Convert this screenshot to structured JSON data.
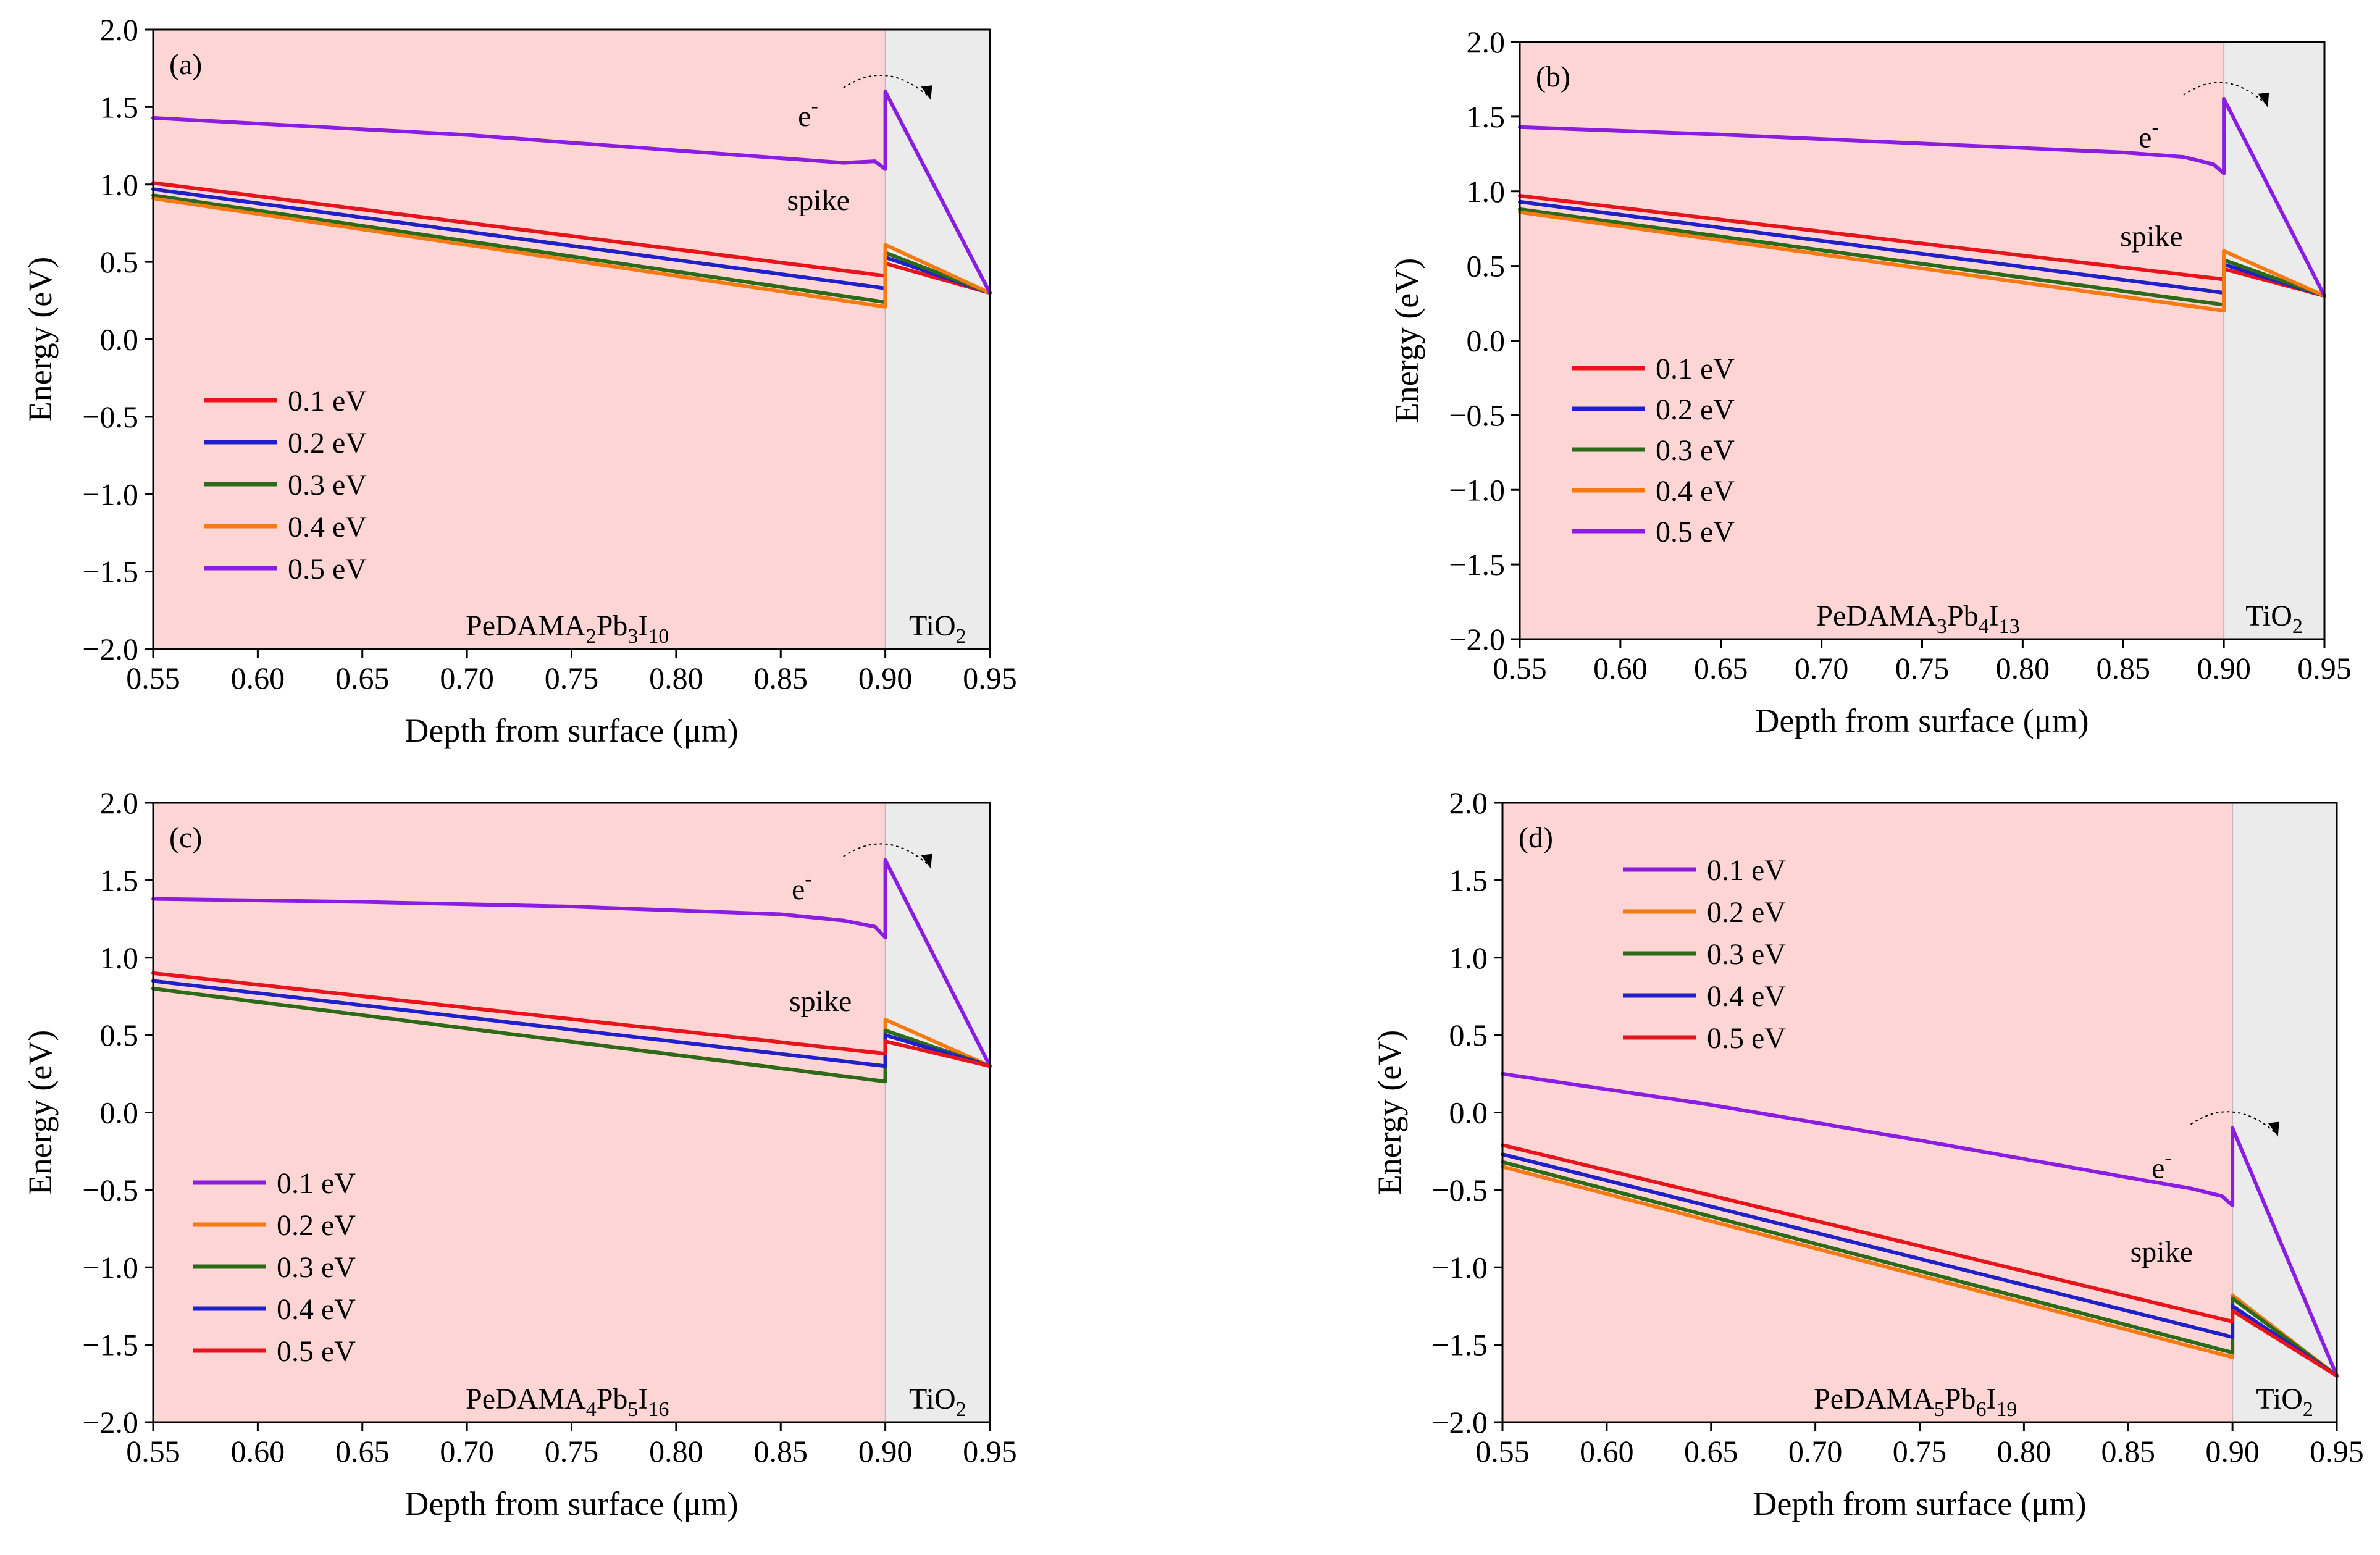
{
  "chart_data": [
    {
      "type": "line",
      "panel_label": "(a)",
      "xlabel": "Depth from surface (μm)",
      "ylabel": "Energy (eV)",
      "xlim": [
        0.55,
        0.95
      ],
      "ylim": [
        -2.0,
        2.0
      ],
      "xticks": [
        "0.55",
        "0.60",
        "0.65",
        "0.70",
        "0.75",
        "0.80",
        "0.85",
        "0.90",
        "0.95"
      ],
      "yticks": [
        "2.0",
        "1.5",
        "1.0",
        "0.5",
        "0.0",
        "−0.5",
        "−1.0",
        "−1.5",
        "−2.0"
      ],
      "regions": [
        {
          "name": "perovskite",
          "x": [
            0.55,
            0.9
          ],
          "color": "#fdd5d5",
          "label_base": "PeDAMA",
          "label_parts": [
            [
              "PeDAMA",
              ""
            ],
            [
              "2",
              "sub"
            ],
            [
              "Pb",
              ""
            ],
            [
              "3",
              "sub"
            ],
            [
              "I",
              ""
            ],
            [
              "10",
              "sub"
            ]
          ]
        },
        {
          "name": "TiO2",
          "x": [
            0.9,
            0.95
          ],
          "color": "#ebebeb",
          "label_parts": [
            [
              "TiO",
              ""
            ],
            [
              "2",
              "sub"
            ]
          ]
        }
      ],
      "annotations": {
        "electron": "e",
        "electron_sup": "-",
        "spike": "spike",
        "electron_xy": [
          0.873,
          1.45
        ],
        "spike_xy": [
          0.868,
          0.9
        ]
      },
      "legend": {
        "position": "lower-left",
        "entries": [
          "0.1 eV",
          "0.2 eV",
          "0.3 eV",
          "0.4 eV",
          "0.5 eV"
        ],
        "colors": [
          "#e8141b",
          "#2020c8",
          "#2a6a18",
          "#f57a14",
          "#8b1de0"
        ]
      },
      "series": [
        {
          "name": "0.1 eV",
          "color": "#e8141b",
          "x": [
            0.55,
            0.9,
            0.9,
            0.95
          ],
          "y": [
            1.01,
            0.41,
            0.49,
            0.3
          ]
        },
        {
          "name": "0.2 eV",
          "color": "#2020c8",
          "x": [
            0.55,
            0.9,
            0.9,
            0.95
          ],
          "y": [
            0.97,
            0.33,
            0.53,
            0.3
          ]
        },
        {
          "name": "0.3 eV",
          "color": "#2a6a18",
          "x": [
            0.55,
            0.9,
            0.9,
            0.95
          ],
          "y": [
            0.93,
            0.24,
            0.56,
            0.3
          ]
        },
        {
          "name": "0.4 eV",
          "color": "#f57a14",
          "x": [
            0.55,
            0.9,
            0.9,
            0.95
          ],
          "y": [
            0.91,
            0.21,
            0.61,
            0.3
          ]
        },
        {
          "name": "0.5 eV",
          "color": "#8b1de0",
          "x": [
            0.55,
            0.7,
            0.8,
            0.85,
            0.88,
            0.895,
            0.9,
            0.9,
            0.95
          ],
          "y": [
            1.43,
            1.32,
            1.22,
            1.17,
            1.14,
            1.15,
            1.1,
            1.6,
            0.3
          ]
        }
      ]
    },
    {
      "type": "line",
      "panel_label": "(b)",
      "xlabel": "Depth from surface (μm)",
      "ylabel": "Energy (eV)",
      "xlim": [
        0.55,
        0.95
      ],
      "ylim": [
        -2.0,
        2.0
      ],
      "xticks": [
        "0.55",
        "0.60",
        "0.65",
        "0.70",
        "0.75",
        "0.80",
        "0.85",
        "0.90",
        "0.95"
      ],
      "yticks": [
        "2.0",
        "1.5",
        "1.0",
        "0.5",
        "0.0",
        "−0.5",
        "−1.0",
        "−1.5",
        "−2.0"
      ],
      "regions": [
        {
          "name": "perovskite",
          "x": [
            0.55,
            0.9
          ],
          "color": "#fdd5d5",
          "label_parts": [
            [
              "PeDAMA",
              ""
            ],
            [
              "3",
              "sub"
            ],
            [
              "Pb",
              ""
            ],
            [
              "4",
              "sub"
            ],
            [
              "I",
              ""
            ],
            [
              "13",
              "sub"
            ]
          ]
        },
        {
          "name": "TiO2",
          "x": [
            0.9,
            0.95
          ],
          "color": "#ebebeb",
          "label_parts": [
            [
              "TiO",
              ""
            ],
            [
              "2",
              "sub"
            ]
          ]
        }
      ],
      "annotations": {
        "electron": "e",
        "electron_sup": "-",
        "spike": "spike",
        "electron_xy": [
          0.873,
          1.37
        ],
        "spike_xy": [
          0.864,
          0.7
        ]
      },
      "legend": {
        "position": "center-left",
        "entries": [
          "0.1 eV",
          "0.2 eV",
          "0.3 eV",
          "0.4 eV",
          "0.5 eV"
        ],
        "colors": [
          "#e8141b",
          "#2020c8",
          "#2a6a18",
          "#f57a14",
          "#8b1de0"
        ]
      },
      "series": [
        {
          "name": "0.1 eV",
          "color": "#e8141b",
          "x": [
            0.55,
            0.9,
            0.9,
            0.95
          ],
          "y": [
            0.97,
            0.41,
            0.48,
            0.3
          ]
        },
        {
          "name": "0.2 eV",
          "color": "#2020c8",
          "x": [
            0.55,
            0.9,
            0.9,
            0.95
          ],
          "y": [
            0.93,
            0.32,
            0.51,
            0.3
          ]
        },
        {
          "name": "0.3 eV",
          "color": "#2a6a18",
          "x": [
            0.55,
            0.9,
            0.9,
            0.95
          ],
          "y": [
            0.88,
            0.24,
            0.54,
            0.3
          ]
        },
        {
          "name": "0.4 eV",
          "color": "#f57a14",
          "x": [
            0.55,
            0.9,
            0.9,
            0.95
          ],
          "y": [
            0.86,
            0.2,
            0.6,
            0.3
          ]
        },
        {
          "name": "0.5 eV",
          "color": "#8b1de0",
          "x": [
            0.55,
            0.65,
            0.75,
            0.85,
            0.88,
            0.895,
            0.9,
            0.9,
            0.95
          ],
          "y": [
            1.43,
            1.38,
            1.32,
            1.26,
            1.23,
            1.18,
            1.12,
            1.62,
            0.3
          ]
        }
      ]
    },
    {
      "type": "line",
      "panel_label": "(c)",
      "xlabel": "Depth from surface (μm)",
      "ylabel": "Energy (eV)",
      "xlim": [
        0.55,
        0.95
      ],
      "ylim": [
        -2.0,
        2.0
      ],
      "xticks": [
        "0.55",
        "0.60",
        "0.65",
        "0.70",
        "0.75",
        "0.80",
        "0.85",
        "0.90",
        "0.95"
      ],
      "yticks": [
        "2.0",
        "1.5",
        "1.0",
        "0.5",
        "0.0",
        "−0.5",
        "−1.0",
        "−1.5",
        "−2.0"
      ],
      "regions": [
        {
          "name": "perovskite",
          "x": [
            0.55,
            0.9
          ],
          "color": "#fdd5d5",
          "label_parts": [
            [
              "PeDAMA",
              ""
            ],
            [
              "4",
              "sub"
            ],
            [
              "Pb",
              ""
            ],
            [
              "5",
              "sub"
            ],
            [
              "I",
              ""
            ],
            [
              "16",
              "sub"
            ]
          ]
        },
        {
          "name": "TiO2",
          "x": [
            0.9,
            0.95
          ],
          "color": "#ebebeb",
          "label_parts": [
            [
              "TiO",
              ""
            ],
            [
              "2",
              "sub"
            ]
          ]
        }
      ],
      "annotations": {
        "electron": "e",
        "electron_sup": "-",
        "spike": "spike",
        "electron_xy": [
          0.87,
          1.45
        ],
        "spike_xy": [
          0.869,
          0.72
        ]
      },
      "legend": {
        "position": "lower-left",
        "entries": [
          "0.1 eV",
          "0.2 eV",
          "0.3 eV",
          "0.4 eV",
          "0.5 eV"
        ],
        "colors": [
          "#8b1de0",
          "#f57a14",
          "#2a6a18",
          "#2020c8",
          "#e8141b"
        ]
      },
      "series": [
        {
          "name": "0.1 eV",
          "color": "#8b1de0",
          "x": [
            0.55,
            0.65,
            0.75,
            0.85,
            0.88,
            0.895,
            0.9,
            0.9,
            0.95
          ],
          "y": [
            1.38,
            1.36,
            1.33,
            1.28,
            1.24,
            1.2,
            1.13,
            1.63,
            0.3
          ]
        },
        {
          "name": "0.2 eV",
          "color": "#f57a14",
          "x": [
            0.55,
            0.9,
            0.9,
            0.95
          ],
          "y": [
            0.8,
            0.2,
            0.6,
            0.3
          ]
        },
        {
          "name": "0.3 eV",
          "color": "#2a6a18",
          "x": [
            0.55,
            0.9,
            0.9,
            0.95
          ],
          "y": [
            0.8,
            0.2,
            0.53,
            0.3
          ]
        },
        {
          "name": "0.4 eV",
          "color": "#2020c8",
          "x": [
            0.55,
            0.9,
            0.9,
            0.95
          ],
          "y": [
            0.85,
            0.3,
            0.5,
            0.3
          ]
        },
        {
          "name": "0.5 eV",
          "color": "#e8141b",
          "x": [
            0.55,
            0.9,
            0.9,
            0.95
          ],
          "y": [
            0.9,
            0.38,
            0.46,
            0.3
          ]
        }
      ]
    },
    {
      "type": "line",
      "panel_label": "(d)",
      "xlabel": "Depth from surface (μm)",
      "ylabel": "Energy (eV)",
      "xlim": [
        0.55,
        0.95
      ],
      "ylim": [
        -2.0,
        2.0
      ],
      "xticks": [
        "0.55",
        "0.60",
        "0.65",
        "0.70",
        "0.75",
        "0.80",
        "0.85",
        "0.90",
        "0.95"
      ],
      "yticks": [
        "2.0",
        "1.5",
        "1.0",
        "0.5",
        "0.0",
        "−0.5",
        "−1.0",
        "−1.5",
        "−2.0"
      ],
      "regions": [
        {
          "name": "perovskite",
          "x": [
            0.55,
            0.9
          ],
          "color": "#fdd5d5",
          "label_parts": [
            [
              "PeDAMA",
              ""
            ],
            [
              "5",
              "sub"
            ],
            [
              "Pb",
              ""
            ],
            [
              "6",
              "sub"
            ],
            [
              "I",
              ""
            ],
            [
              "19",
              "sub"
            ]
          ]
        },
        {
          "name": "TiO2",
          "x": [
            0.9,
            0.95
          ],
          "color": "#ebebeb",
          "label_parts": [
            [
              "TiO",
              ""
            ],
            [
              "2",
              "sub"
            ]
          ]
        }
      ],
      "annotations": {
        "electron": "e",
        "electron_sup": "-",
        "spike": "spike",
        "electron_xy": [
          0.876,
          -0.35
        ],
        "spike_xy": [
          0.866,
          -0.9
        ]
      },
      "legend": {
        "position": "upper-left",
        "entries": [
          "0.1 eV",
          "0.2 eV",
          "0.3 eV",
          "0.4 eV",
          "0.5 eV"
        ],
        "colors": [
          "#8b1de0",
          "#f57a14",
          "#2a6a18",
          "#2020c8",
          "#e8141b"
        ]
      },
      "series": [
        {
          "name": "0.1 eV",
          "color": "#8b1de0",
          "x": [
            0.55,
            0.65,
            0.75,
            0.85,
            0.88,
            0.895,
            0.9,
            0.9,
            0.95
          ],
          "y": [
            0.25,
            0.05,
            -0.18,
            -0.42,
            -0.49,
            -0.54,
            -0.6,
            -0.1,
            -1.7
          ]
        },
        {
          "name": "0.2 eV",
          "color": "#f57a14",
          "x": [
            0.55,
            0.9,
            0.9,
            0.95
          ],
          "y": [
            -0.35,
            -1.58,
            -1.18,
            -1.7
          ]
        },
        {
          "name": "0.3 eV",
          "color": "#2a6a18",
          "x": [
            0.55,
            0.9,
            0.9,
            0.95
          ],
          "y": [
            -0.32,
            -1.55,
            -1.2,
            -1.7
          ]
        },
        {
          "name": "0.4 eV",
          "color": "#2020c8",
          "x": [
            0.55,
            0.9,
            0.9,
            0.95
          ],
          "y": [
            -0.27,
            -1.45,
            -1.25,
            -1.7
          ]
        },
        {
          "name": "0.5 eV",
          "color": "#e8141b",
          "x": [
            0.55,
            0.9,
            0.9,
            0.95
          ],
          "y": [
            -0.21,
            -1.35,
            -1.28,
            -1.7
          ]
        }
      ]
    }
  ]
}
